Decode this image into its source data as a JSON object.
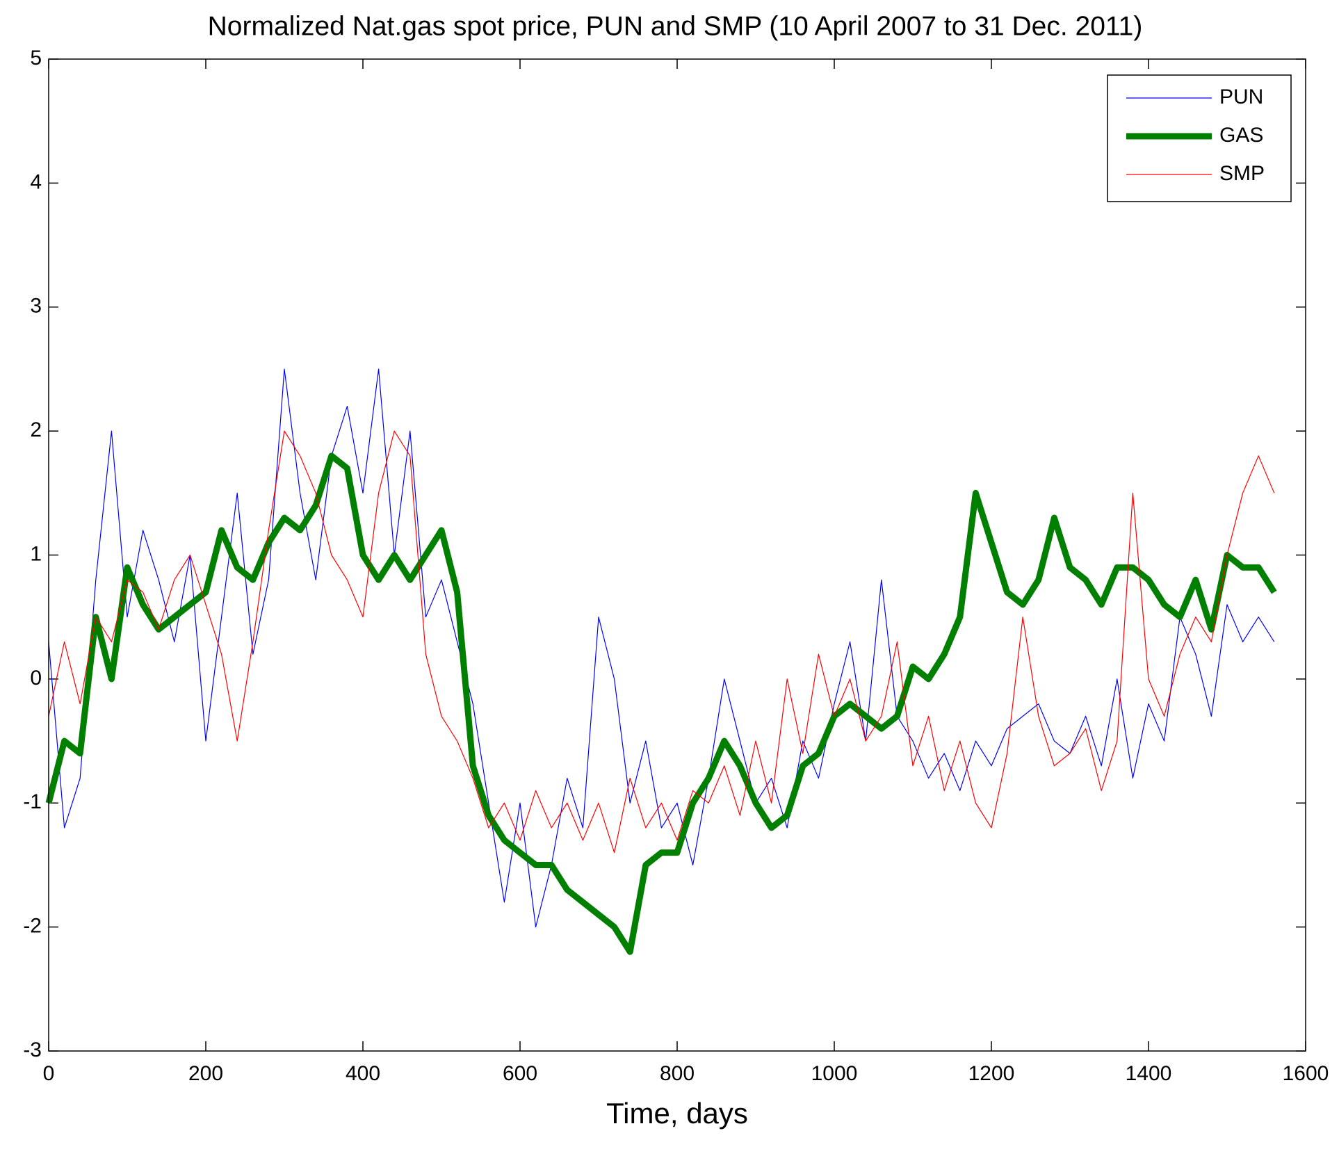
{
  "chart_data": {
    "type": "line",
    "title": "Normalized Nat.gas spot price, PUN and SMP (10 April 2007 to 31 Dec. 2011)",
    "x_label": "Time, days",
    "x": [
      0,
      20,
      40,
      60,
      80,
      100,
      120,
      140,
      160,
      180,
      200,
      220,
      240,
      260,
      280,
      300,
      320,
      340,
      360,
      380,
      400,
      420,
      440,
      460,
      480,
      500,
      520,
      540,
      560,
      580,
      600,
      620,
      640,
      660,
      680,
      700,
      720,
      740,
      760,
      780,
      800,
      820,
      840,
      860,
      880,
      900,
      920,
      940,
      960,
      980,
      1000,
      1020,
      1040,
      1060,
      1080,
      1100,
      1120,
      1140,
      1160,
      1180,
      1200,
      1220,
      1240,
      1260,
      1280,
      1300,
      1320,
      1340,
      1360,
      1380,
      1400,
      1420,
      1440,
      1460,
      1480,
      1500,
      1520,
      1540,
      1560
    ],
    "series": [
      {
        "name": "PUN",
        "color": "#0000ff",
        "line_width": 1.2,
        "values": [
          0.3,
          -1.2,
          -0.8,
          0.8,
          2.0,
          0.5,
          1.2,
          0.8,
          0.3,
          1.0,
          -0.5,
          0.5,
          1.5,
          0.2,
          0.8,
          2.5,
          1.5,
          0.8,
          1.8,
          2.2,
          1.5,
          2.5,
          1.0,
          2.0,
          0.5,
          0.8,
          0.3,
          -0.2,
          -1.0,
          -1.8,
          -1.0,
          -2.0,
          -1.5,
          -0.8,
          -1.2,
          0.5,
          0.0,
          -1.0,
          -0.5,
          -1.2,
          -1.0,
          -1.5,
          -0.8,
          0.0,
          -0.5,
          -1.0,
          -0.8,
          -1.2,
          -0.5,
          -0.8,
          -0.2,
          0.3,
          -0.5,
          0.8,
          -0.3,
          -0.5,
          -0.8,
          -0.6,
          -0.9,
          -0.5,
          -0.7,
          -0.4,
          -0.3,
          -0.2,
          -0.5,
          -0.6,
          -0.3,
          -0.7,
          0.0,
          -0.8,
          -0.2,
          -0.5,
          0.5,
          0.2,
          -0.3,
          0.6,
          0.3,
          0.5,
          0.3
        ]
      },
      {
        "name": "GAS",
        "color": "#007f00",
        "line_width": 9,
        "values": [
          -1.0,
          -0.5,
          -0.6,
          0.5,
          0.0,
          0.9,
          0.6,
          0.4,
          0.5,
          0.6,
          0.7,
          1.2,
          0.9,
          0.8,
          1.1,
          1.3,
          1.2,
          1.4,
          1.8,
          1.7,
          1.0,
          0.8,
          1.0,
          0.8,
          1.0,
          1.2,
          0.7,
          -0.7,
          -1.1,
          -1.3,
          -1.4,
          -1.5,
          -1.5,
          -1.7,
          -1.8,
          -1.9,
          -2.0,
          -2.2,
          -1.5,
          -1.4,
          -1.4,
          -1.0,
          -0.8,
          -0.5,
          -0.7,
          -1.0,
          -1.2,
          -1.1,
          -0.7,
          -0.6,
          -0.3,
          -0.2,
          -0.3,
          -0.4,
          -0.3,
          0.1,
          0.0,
          0.2,
          0.5,
          1.5,
          1.1,
          0.7,
          0.6,
          0.8,
          1.3,
          0.9,
          0.8,
          0.6,
          0.9,
          0.9,
          0.8,
          0.6,
          0.5,
          0.8,
          0.4,
          1.0,
          0.9,
          0.9,
          0.7
        ]
      },
      {
        "name": "SMP",
        "color": "#ff0000",
        "line_width": 1.2,
        "values": [
          -0.3,
          0.3,
          -0.2,
          0.5,
          0.3,
          0.8,
          0.7,
          0.4,
          0.8,
          1.0,
          0.6,
          0.2,
          -0.5,
          0.3,
          1.2,
          2.0,
          1.8,
          1.5,
          1.0,
          0.8,
          0.5,
          1.5,
          2.0,
          1.8,
          0.2,
          -0.3,
          -0.5,
          -0.8,
          -1.2,
          -1.0,
          -1.3,
          -0.9,
          -1.2,
          -1.0,
          -1.3,
          -1.0,
          -1.4,
          -0.8,
          -1.2,
          -1.0,
          -1.3,
          -0.9,
          -1.0,
          -0.7,
          -1.1,
          -0.5,
          -1.0,
          0.0,
          -0.6,
          0.2,
          -0.3,
          0.0,
          -0.5,
          -0.3,
          0.3,
          -0.7,
          -0.3,
          -0.9,
          -0.5,
          -1.0,
          -1.2,
          -0.6,
          0.5,
          -0.3,
          -0.7,
          -0.6,
          -0.4,
          -0.9,
          -0.5,
          1.5,
          0.0,
          -0.3,
          0.2,
          0.5,
          0.3,
          1.0,
          1.5,
          1.8,
          1.5
        ]
      }
    ],
    "xlim": [
      0,
      1600
    ],
    "xticks": [
      0,
      200,
      400,
      600,
      800,
      1000,
      1200,
      1400,
      1600
    ],
    "ylim": [
      -3,
      5
    ],
    "yticks": [
      -3,
      -2,
      -1,
      0,
      1,
      2,
      3,
      4,
      5
    ],
    "grid": false,
    "legend": "upper right"
  }
}
